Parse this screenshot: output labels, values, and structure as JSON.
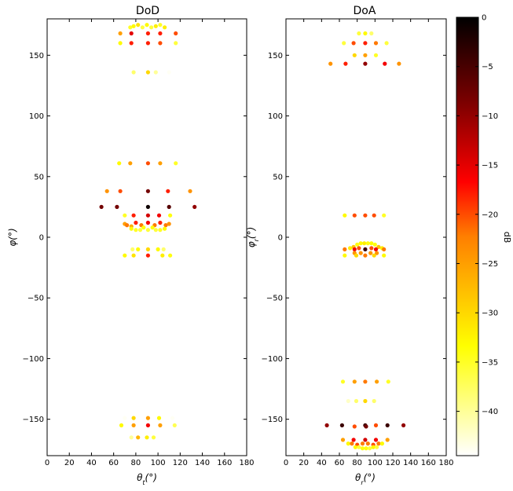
{
  "chart_data": [
    {
      "type": "scatter",
      "title": "DoD",
      "xlabel": "θ_t(°)",
      "ylabel": "φ(°)",
      "xlim": [
        0,
        180
      ],
      "ylim": [
        -180,
        180
      ],
      "xticks": [
        0,
        20,
        40,
        60,
        80,
        100,
        120,
        140,
        160,
        180
      ],
      "yticks": [
        -150,
        -100,
        -50,
        0,
        50,
        100,
        150
      ],
      "grid": false,
      "points": [
        {
          "x": 75,
          "y": 173,
          "db": -35
        },
        {
          "x": 78,
          "y": 174,
          "db": -33
        },
        {
          "x": 82,
          "y": 175,
          "db": -31
        },
        {
          "x": 86,
          "y": 173,
          "db": -36
        },
        {
          "x": 90,
          "y": 175,
          "db": -33
        },
        {
          "x": 94,
          "y": 173,
          "db": -36
        },
        {
          "x": 98,
          "y": 174,
          "db": -32
        },
        {
          "x": 102,
          "y": 175,
          "db": -35
        },
        {
          "x": 106,
          "y": 173,
          "db": -32
        },
        {
          "x": 66,
          "y": 168,
          "db": -25
        },
        {
          "x": 76,
          "y": 168,
          "db": -15
        },
        {
          "x": 91,
          "y": 168,
          "db": -18
        },
        {
          "x": 102,
          "y": 168,
          "db": -18
        },
        {
          "x": 116,
          "y": 168,
          "db": -20
        },
        {
          "x": 66,
          "y": 160,
          "db": -33
        },
        {
          "x": 76,
          "y": 160,
          "db": -18
        },
        {
          "x": 91,
          "y": 160,
          "db": -18
        },
        {
          "x": 102,
          "y": 160,
          "db": -20
        },
        {
          "x": 116,
          "y": 160,
          "db": -36
        },
        {
          "x": 78,
          "y": 136,
          "db": -38
        },
        {
          "x": 91,
          "y": 136,
          "db": -30
        },
        {
          "x": 98,
          "y": 136,
          "db": -40
        },
        {
          "x": 110,
          "y": 136,
          "db": -44
        },
        {
          "x": 65,
          "y": 61,
          "db": -33
        },
        {
          "x": 75,
          "y": 61,
          "db": -25
        },
        {
          "x": 91,
          "y": 61,
          "db": -20
        },
        {
          "x": 102,
          "y": 61,
          "db": -25
        },
        {
          "x": 116,
          "y": 61,
          "db": -35
        },
        {
          "x": 54,
          "y": 38,
          "db": -24
        },
        {
          "x": 66,
          "y": 38,
          "db": -20
        },
        {
          "x": 91,
          "y": 38,
          "db": -8
        },
        {
          "x": 109,
          "y": 38,
          "db": -18
        },
        {
          "x": 129,
          "y": 38,
          "db": -24
        },
        {
          "x": 49,
          "y": 25,
          "db": -8
        },
        {
          "x": 63,
          "y": 25,
          "db": -8
        },
        {
          "x": 91,
          "y": 25,
          "db": -1
        },
        {
          "x": 110,
          "y": 25,
          "db": -6
        },
        {
          "x": 133,
          "y": 25,
          "db": -10
        },
        {
          "x": 70,
          "y": 18,
          "db": -35
        },
        {
          "x": 78,
          "y": 18,
          "db": -18
        },
        {
          "x": 91,
          "y": 18,
          "db": -14
        },
        {
          "x": 101,
          "y": 18,
          "db": -16
        },
        {
          "x": 111,
          "y": 18,
          "db": -34
        },
        {
          "x": 70,
          "y": 11,
          "db": -25
        },
        {
          "x": 72,
          "y": 10,
          "db": -22
        },
        {
          "x": 76,
          "y": 9,
          "db": -26
        },
        {
          "x": 80,
          "y": 12,
          "db": -18
        },
        {
          "x": 85,
          "y": 10,
          "db": -22
        },
        {
          "x": 91,
          "y": 12,
          "db": -16
        },
        {
          "x": 97,
          "y": 10,
          "db": -22
        },
        {
          "x": 102,
          "y": 12,
          "db": -18
        },
        {
          "x": 107,
          "y": 10,
          "db": -22
        },
        {
          "x": 110,
          "y": 11,
          "db": -24
        },
        {
          "x": 76,
          "y": 7,
          "db": -33
        },
        {
          "x": 80,
          "y": 6,
          "db": -35
        },
        {
          "x": 84,
          "y": 6,
          "db": -36
        },
        {
          "x": 87,
          "y": 8,
          "db": -34
        },
        {
          "x": 91,
          "y": 6,
          "db": -36
        },
        {
          "x": 95,
          "y": 8,
          "db": -34
        },
        {
          "x": 98,
          "y": 6,
          "db": -36
        },
        {
          "x": 102,
          "y": 6,
          "db": -35
        },
        {
          "x": 106,
          "y": 7,
          "db": -33
        },
        {
          "x": 77,
          "y": -10,
          "db": -38
        },
        {
          "x": 82,
          "y": -10,
          "db": -33
        },
        {
          "x": 91,
          "y": -10,
          "db": -30
        },
        {
          "x": 100,
          "y": -10,
          "db": -33
        },
        {
          "x": 105,
          "y": -10,
          "db": -38
        },
        {
          "x": 70,
          "y": -15,
          "db": -33
        },
        {
          "x": 78,
          "y": -15,
          "db": -31
        },
        {
          "x": 91,
          "y": -15,
          "db": -18
        },
        {
          "x": 104,
          "y": -15,
          "db": -32
        },
        {
          "x": 111,
          "y": -15,
          "db": -34
        },
        {
          "x": 70,
          "y": -149,
          "db": -44
        },
        {
          "x": 78,
          "y": -149,
          "db": -30
        },
        {
          "x": 91,
          "y": -149,
          "db": -25
        },
        {
          "x": 101,
          "y": -149,
          "db": -33
        },
        {
          "x": 113,
          "y": -149,
          "db": -44
        },
        {
          "x": 67,
          "y": -155,
          "db": -33
        },
        {
          "x": 78,
          "y": -155,
          "db": -25
        },
        {
          "x": 91,
          "y": -155,
          "db": -16
        },
        {
          "x": 102,
          "y": -155,
          "db": -25
        },
        {
          "x": 115,
          "y": -155,
          "db": -37
        },
        {
          "x": 76,
          "y": -165,
          "db": -40
        },
        {
          "x": 82,
          "y": -165,
          "db": -27
        },
        {
          "x": 90,
          "y": -165,
          "db": -32
        },
        {
          "x": 96,
          "y": -165,
          "db": -36
        }
      ]
    },
    {
      "type": "scatter",
      "title": "DoA",
      "xlabel": "θ_r(°)",
      "ylabel": "φ_r(°)",
      "xlim": [
        0,
        180
      ],
      "ylim": [
        -180,
        180
      ],
      "xticks": [
        0,
        20,
        40,
        60,
        80,
        100,
        120,
        140,
        160,
        180
      ],
      "yticks": [
        -150,
        -100,
        -50,
        0,
        50,
        100,
        150
      ],
      "grid": false,
      "points": [
        {
          "x": 82,
          "y": 168,
          "db": -36
        },
        {
          "x": 89,
          "y": 168,
          "db": -33
        },
        {
          "x": 96,
          "y": 168,
          "db": -38
        },
        {
          "x": 65,
          "y": 160,
          "db": -36
        },
        {
          "x": 76,
          "y": 160,
          "db": -20
        },
        {
          "x": 89,
          "y": 160,
          "db": -18
        },
        {
          "x": 101,
          "y": 160,
          "db": -22
        },
        {
          "x": 113,
          "y": 160,
          "db": -36
        },
        {
          "x": 77,
          "y": 150,
          "db": -30
        },
        {
          "x": 89,
          "y": 150,
          "db": -25
        },
        {
          "x": 101,
          "y": 150,
          "db": -35
        },
        {
          "x": 50,
          "y": 143,
          "db": -24
        },
        {
          "x": 67,
          "y": 143,
          "db": -18
        },
        {
          "x": 89,
          "y": 143,
          "db": -10
        },
        {
          "x": 111,
          "y": 143,
          "db": -16
        },
        {
          "x": 127,
          "y": 143,
          "db": -24
        },
        {
          "x": 66,
          "y": 18,
          "db": -33
        },
        {
          "x": 77,
          "y": 18,
          "db": -20
        },
        {
          "x": 89,
          "y": 18,
          "db": -20
        },
        {
          "x": 99,
          "y": 18,
          "db": -20
        },
        {
          "x": 110,
          "y": 18,
          "db": -35
        },
        {
          "x": 80,
          "y": -6,
          "db": -34
        },
        {
          "x": 84,
          "y": -5,
          "db": -33
        },
        {
          "x": 88,
          "y": -5,
          "db": -32
        },
        {
          "x": 92,
          "y": -5,
          "db": -34
        },
        {
          "x": 96,
          "y": -5,
          "db": -33
        },
        {
          "x": 100,
          "y": -6,
          "db": -34
        },
        {
          "x": 72,
          "y": -9,
          "db": -32
        },
        {
          "x": 76,
          "y": -8,
          "db": -28
        },
        {
          "x": 104,
          "y": -8,
          "db": -28
        },
        {
          "x": 108,
          "y": -9,
          "db": -32
        },
        {
          "x": 66,
          "y": -10,
          "db": -22
        },
        {
          "x": 77,
          "y": -10,
          "db": -16
        },
        {
          "x": 82,
          "y": -9,
          "db": -20
        },
        {
          "x": 89,
          "y": -10,
          "db": -4
        },
        {
          "x": 96,
          "y": -9,
          "db": -20
        },
        {
          "x": 101,
          "y": -10,
          "db": -16
        },
        {
          "x": 110,
          "y": -10,
          "db": -22
        },
        {
          "x": 77,
          "y": -13,
          "db": -24
        },
        {
          "x": 84,
          "y": -13,
          "db": -24
        },
        {
          "x": 95,
          "y": -13,
          "db": -24
        },
        {
          "x": 102,
          "y": -13,
          "db": -24
        },
        {
          "x": 66,
          "y": -15,
          "db": -33
        },
        {
          "x": 79,
          "y": -15,
          "db": -30
        },
        {
          "x": 89,
          "y": -15,
          "db": -22
        },
        {
          "x": 99,
          "y": -15,
          "db": -30
        },
        {
          "x": 110,
          "y": -15,
          "db": -33
        },
        {
          "x": 64,
          "y": -119,
          "db": -35
        },
        {
          "x": 77,
          "y": -119,
          "db": -25
        },
        {
          "x": 89,
          "y": -119,
          "db": -22
        },
        {
          "x": 102,
          "y": -119,
          "db": -25
        },
        {
          "x": 115,
          "y": -119,
          "db": -35
        },
        {
          "x": 70,
          "y": -135,
          "db": -42
        },
        {
          "x": 79,
          "y": -135,
          "db": -38
        },
        {
          "x": 89,
          "y": -135,
          "db": -30
        },
        {
          "x": 99,
          "y": -135,
          "db": -38
        },
        {
          "x": 46,
          "y": -155,
          "db": -10
        },
        {
          "x": 63,
          "y": -155,
          "db": -4
        },
        {
          "x": 77,
          "y": -156,
          "db": -20
        },
        {
          "x": 89,
          "y": -155,
          "db": -4
        },
        {
          "x": 90,
          "y": -156,
          "db": -8
        },
        {
          "x": 101,
          "y": -155,
          "db": -20
        },
        {
          "x": 114,
          "y": -155,
          "db": -4
        },
        {
          "x": 132,
          "y": -155,
          "db": -10
        },
        {
          "x": 64,
          "y": -167,
          "db": -25
        },
        {
          "x": 76,
          "y": -167,
          "db": -16
        },
        {
          "x": 89,
          "y": -167,
          "db": -14
        },
        {
          "x": 101,
          "y": -167,
          "db": -16
        },
        {
          "x": 114,
          "y": -167,
          "db": -25
        },
        {
          "x": 70,
          "y": -170,
          "db": -33
        },
        {
          "x": 74,
          "y": -170,
          "db": -22
        },
        {
          "x": 80,
          "y": -171,
          "db": -20
        },
        {
          "x": 86,
          "y": -170,
          "db": -22
        },
        {
          "x": 92,
          "y": -170,
          "db": -22
        },
        {
          "x": 98,
          "y": -171,
          "db": -20
        },
        {
          "x": 104,
          "y": -170,
          "db": -22
        },
        {
          "x": 108,
          "y": -170,
          "db": -33
        },
        {
          "x": 78,
          "y": -173,
          "db": -33
        },
        {
          "x": 82,
          "y": -173,
          "db": -36
        },
        {
          "x": 86,
          "y": -174,
          "db": -34
        },
        {
          "x": 90,
          "y": -174,
          "db": -34
        },
        {
          "x": 94,
          "y": -174,
          "db": -36
        },
        {
          "x": 98,
          "y": -173,
          "db": -33
        },
        {
          "x": 102,
          "y": -173,
          "db": -36
        }
      ]
    }
  ],
  "colorbar": {
    "label": "dB",
    "colormap": "hot_r",
    "range": [
      -44.5,
      0
    ],
    "ticks": [
      0,
      -5,
      -10,
      -15,
      -20,
      -25,
      -30,
      -35,
      -40
    ],
    "stops": [
      "#ffffff",
      "#ffff00",
      "#ff7f00",
      "#ff0000",
      "#800000",
      "#000000"
    ]
  }
}
